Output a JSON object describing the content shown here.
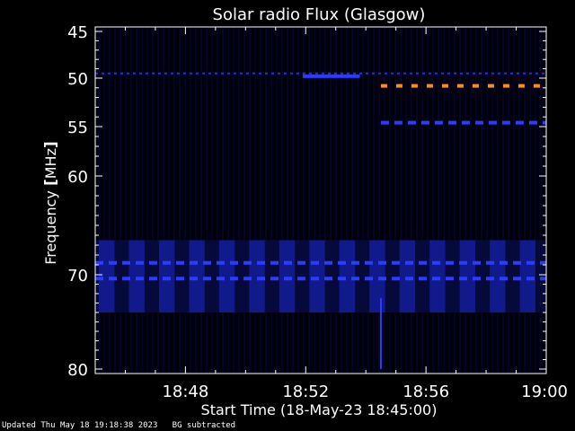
{
  "chart_data": {
    "type": "heatmap",
    "title": "Solar radio Flux (Glasgow)",
    "xlabel": "Start Time (18-May-23 18:45:00)",
    "ylabel_text": "Frequency ",
    "ylabel_unit": "MHz",
    "x_range_minutes": [
      0,
      15
    ],
    "x_ticks": [
      {
        "minute": 3,
        "label": "18:48"
      },
      {
        "minute": 7,
        "label": "18:52"
      },
      {
        "minute": 11,
        "label": "18:56"
      },
      {
        "minute": 15,
        "label": "19:00"
      }
    ],
    "y_ticks": [
      {
        "value": 45,
        "label": "45"
      },
      {
        "value": 50,
        "label": "50"
      },
      {
        "value": 55,
        "label": "55"
      },
      {
        "value": 60,
        "label": "60"
      },
      {
        "value": 70,
        "label": "70"
      },
      {
        "value": 80,
        "label": "80"
      }
    ],
    "features": [
      {
        "name": "",
        "kind": "dotted-line",
        "freq_mhz": 49.5,
        "start_min": 0,
        "end_min": 15,
        "color": "#1c2cff"
      },
      {
        "name": "",
        "kind": "solid-line",
        "freq_mhz": 49.8,
        "start_min": 6.9,
        "end_min": 8.8,
        "color": "#2a3cff"
      },
      {
        "name": "",
        "kind": "dashed-line",
        "freq_mhz": 50.8,
        "start_min": 9.5,
        "end_min": 15,
        "color": "#ff8a2a"
      },
      {
        "name": "",
        "kind": "dashed-line",
        "freq_mhz": 54.6,
        "start_min": 9.5,
        "end_min": 15,
        "color": "#2a3cff"
      },
      {
        "name": "",
        "kind": "band",
        "freq_range_mhz": [
          66.5,
          74.0
        ],
        "start_min": 0,
        "end_min": 15,
        "color": "#101a8a"
      },
      {
        "name": "",
        "kind": "dashed-line",
        "freq_mhz": 68.8,
        "start_min": 0,
        "end_min": 15,
        "color": "#2a3cff"
      },
      {
        "name": "",
        "kind": "dashed-line",
        "freq_mhz": 70.4,
        "start_min": 0,
        "end_min": 15,
        "color": "#2a3cff"
      },
      {
        "name": "",
        "kind": "spike",
        "freq_range_mhz": [
          72.5,
          80.0
        ],
        "minute": 9.5,
        "color": "#2a3cff"
      }
    ],
    "grid": false,
    "colors": {
      "background": "#000000",
      "plot": "#01010d",
      "axes": "#ffffff",
      "text": "#ffffff"
    }
  },
  "footer": {
    "updated": "Updated Thu May 18 19:18:38 2023",
    "note": "BG subtracted"
  }
}
